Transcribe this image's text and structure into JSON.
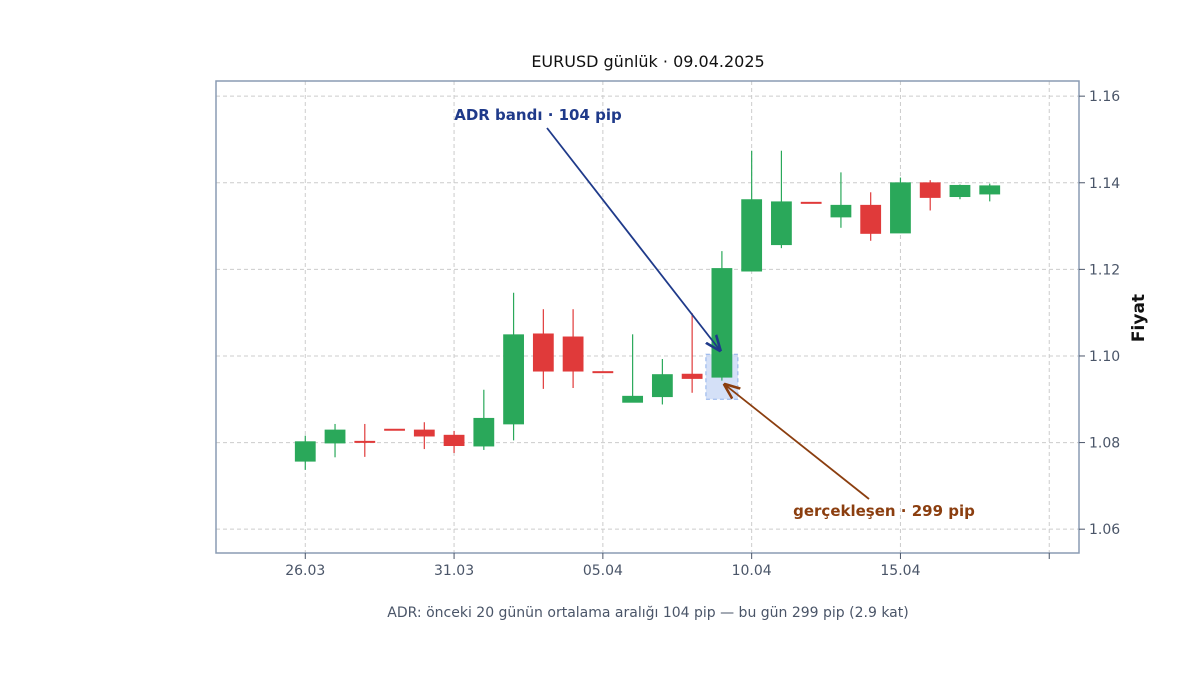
{
  "chart_data": {
    "type": "candlestick",
    "title": "EURUSD günlük · 09.04.2025",
    "ylabel": "Fiyat",
    "ylim": [
      1.0545,
      1.1635
    ],
    "y_ticks": [
      "1.06",
      "1.08",
      "1.10",
      "1.12",
      "1.14",
      "1.16"
    ],
    "y_tick_values": [
      1.06,
      1.08,
      1.1,
      1.12,
      1.14,
      1.16
    ],
    "x_range": [
      "2025-03-23",
      "2025-04-21"
    ],
    "x_ticks": [
      "26.03",
      "31.03",
      "05.04",
      "10.04",
      "15.04"
    ],
    "x_tick_dates": [
      "2025-03-26",
      "2025-03-31",
      "2025-04-05",
      "2025-04-10",
      "2025-04-15"
    ],
    "extra_x_tick_date": "2025-04-20",
    "grid": true,
    "up_color": "#2aa85a",
    "down_color": "#e03a3a",
    "candles": [
      {
        "date": "2025-03-26",
        "open": 1.0757,
        "high": 1.0816,
        "low": 1.0737,
        "close": 1.0802
      },
      {
        "date": "2025-03-27",
        "open": 1.0799,
        "high": 1.0843,
        "low": 1.0766,
        "close": 1.0829
      },
      {
        "date": "2025-03-28",
        "open": 1.0803,
        "high": 1.0843,
        "low": 1.0767,
        "close": 1.0801
      },
      {
        "date": "2025-03-29",
        "open": 1.0831,
        "high": 1.0831,
        "low": 1.0831,
        "close": 1.083
      },
      {
        "date": "2025-03-30",
        "open": 1.0829,
        "high": 1.0847,
        "low": 1.0785,
        "close": 1.0815
      },
      {
        "date": "2025-03-31",
        "open": 1.0817,
        "high": 1.0827,
        "low": 1.0776,
        "close": 1.0793
      },
      {
        "date": "2025-04-01",
        "open": 1.0792,
        "high": 1.0922,
        "low": 1.0783,
        "close": 1.0856
      },
      {
        "date": "2025-04-02",
        "open": 1.0843,
        "high": 1.1146,
        "low": 1.0805,
        "close": 1.1049
      },
      {
        "date": "2025-04-03",
        "open": 1.1051,
        "high": 1.1108,
        "low": 1.0924,
        "close": 1.0965
      },
      {
        "date": "2025-04-04",
        "open": 1.1044,
        "high": 1.1108,
        "low": 1.0926,
        "close": 1.0965
      },
      {
        "date": "2025-04-05",
        "open": 1.0964,
        "high": 1.0964,
        "low": 1.0964,
        "close": 1.0963
      },
      {
        "date": "2025-04-06",
        "open": 1.0893,
        "high": 1.105,
        "low": 1.0893,
        "close": 1.0907
      },
      {
        "date": "2025-04-07",
        "open": 1.0906,
        "high": 1.0993,
        "low": 1.0888,
        "close": 1.0957
      },
      {
        "date": "2025-04-08",
        "open": 1.0958,
        "high": 1.1099,
        "low": 1.0915,
        "close": 1.0948
      },
      {
        "date": "2025-04-09",
        "open": 1.0951,
        "high": 1.1242,
        "low": 1.0943,
        "close": 1.1202
      },
      {
        "date": "2025-04-10",
        "open": 1.1196,
        "high": 1.1474,
        "low": 1.1196,
        "close": 1.1361
      },
      {
        "date": "2025-04-11",
        "open": 1.1257,
        "high": 1.1474,
        "low": 1.1249,
        "close": 1.1356
      },
      {
        "date": "2025-04-12",
        "open": 1.1355,
        "high": 1.1355,
        "low": 1.1355,
        "close": 1.1354
      },
      {
        "date": "2025-04-13",
        "open": 1.1321,
        "high": 1.1424,
        "low": 1.1296,
        "close": 1.1348
      },
      {
        "date": "2025-04-14",
        "open": 1.1348,
        "high": 1.1378,
        "low": 1.1266,
        "close": 1.1283
      },
      {
        "date": "2025-04-15",
        "open": 1.1284,
        "high": 1.1412,
        "low": 1.1284,
        "close": 1.14
      },
      {
        "date": "2025-04-16",
        "open": 1.14,
        "high": 1.1406,
        "low": 1.1336,
        "close": 1.1366
      },
      {
        "date": "2025-04-17",
        "open": 1.1368,
        "high": 1.1396,
        "low": 1.1362,
        "close": 1.1394
      },
      {
        "date": "2025-04-18",
        "open": 1.1374,
        "high": 1.1398,
        "low": 1.1357,
        "close": 1.1393
      }
    ],
    "adr_band": {
      "date": "2025-04-09",
      "low": 1.09,
      "high": 1.1004,
      "color": "#c9d8f5",
      "edge_color": "#8fb0ea"
    },
    "annotations": {
      "adr": {
        "text": "ADR bandı · 104 pip",
        "color": "#1f3a8a",
        "target_date": "2025-04-09",
        "target_price": 1.1004
      },
      "realized": {
        "text": "gerçekleşen · 299 pip",
        "color": "#8b3e0f",
        "target_date": "2025-04-09",
        "target_price": 1.0943
      }
    },
    "footnote": "ADR: önceki 20 günün ortalama aralığı 104 pip — bu gün 299 pip (2.9 kat)",
    "frame_color": "#8a9bb3",
    "grid_color": "#cccccc"
  }
}
